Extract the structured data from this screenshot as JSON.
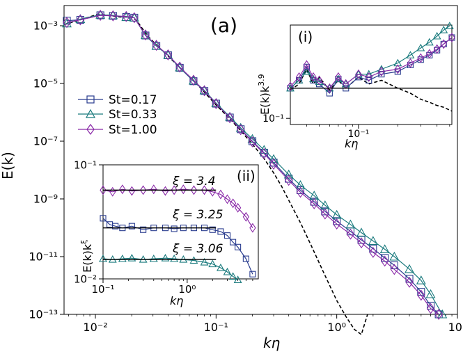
{
  "chart_data": [
    {
      "type": "line",
      "panel": "main",
      "label": "(a)",
      "xlabel": "kη",
      "ylabel": "E(k)",
      "xscale": "log",
      "yscale": "log",
      "xlim": [
        0.0055,
        10
      ],
      "ylim": [
        1e-13,
        0.005
      ],
      "xticks": [
        {
          "v": 0.01,
          "label": "10⁻²"
        },
        {
          "v": 0.1,
          "label": "10⁻¹"
        },
        {
          "v": 1,
          "label": "10⁰"
        },
        {
          "v": 10,
          "label": "10¹"
        }
      ],
      "yticks": [
        {
          "v": 0.001,
          "label": "10⁻³"
        },
        {
          "v": 1e-05,
          "label": "10⁻⁵"
        },
        {
          "v": 1e-07,
          "label": "10⁻⁷"
        },
        {
          "v": 1e-09,
          "label": "10⁻⁹"
        },
        {
          "v": 1e-11,
          "label": "10⁻¹¹"
        },
        {
          "v": 1e-13,
          "label": "10⁻¹³"
        }
      ],
      "legend": {
        "position": "center-left",
        "entries": [
          "St=0.17",
          "St=0.33",
          "St=1.00"
        ]
      },
      "series": [
        {
          "name": "fluid (dashed)",
          "style": "dashed",
          "color": "#000000",
          "x": [
            0.0055,
            0.0075,
            0.0105,
            0.013,
            0.016,
            0.02,
            0.022,
            0.027,
            0.033,
            0.04,
            0.05,
            0.065,
            0.08,
            0.1,
            0.13,
            0.16,
            0.2,
            0.25,
            0.3,
            0.35,
            0.4,
            0.5,
            0.6,
            0.8,
            1.0,
            1.2,
            1.4,
            1.6,
            1.8
          ],
          "y": [
            0.0011,
            0.0016,
            0.0025,
            0.0023,
            0.002,
            0.002,
            0.0015,
            0.00045,
            0.00019,
            9e-05,
            3.5e-05,
            1.3e-05,
            5e-06,
            1.8e-06,
            6e-07,
            2.3e-07,
            7.9e-08,
            2.5e-08,
            8e-09,
            2.7e-09,
            9e-10,
            1.5e-10,
            3e-11,
            2.2e-12,
            3e-13,
            8e-14,
            3e-14,
            2e-14,
            1e-13
          ]
        },
        {
          "name": "St=0.17",
          "marker": "square",
          "color": "#2a3d8f",
          "x": [
            0.0058,
            0.0075,
            0.011,
            0.014,
            0.018,
            0.021,
            0.026,
            0.032,
            0.04,
            0.05,
            0.065,
            0.08,
            0.1,
            0.13,
            0.16,
            0.2,
            0.25,
            0.3,
            0.4,
            0.5,
            0.65,
            0.8,
            1.0,
            1.3,
            1.6,
            2.0,
            2.5,
            3.0,
            4.0,
            5.0,
            6.0,
            7.0
          ],
          "y": [
            0.0015,
            0.0016,
            0.0023,
            0.0022,
            0.002,
            0.0019,
            0.00046,
            0.0002,
            9.5e-05,
            3.5e-05,
            1.2e-05,
            5.5e-06,
            2e-06,
            6.6e-07,
            2.6e-07,
            1e-07,
            4e-08,
            1.8e-08,
            5e-09,
            2e-09,
            8e-10,
            3.7e-10,
            1.7e-10,
            7.5e-11,
            3.8e-11,
            1.9e-11,
            9e-12,
            5e-12,
            1.7e-12,
            6e-13,
            2e-13,
            1e-13
          ]
        },
        {
          "name": "St=0.33",
          "marker": "triangle",
          "color": "#1b7b7e",
          "x": [
            0.0058,
            0.0075,
            0.011,
            0.014,
            0.018,
            0.021,
            0.026,
            0.032,
            0.04,
            0.05,
            0.065,
            0.08,
            0.1,
            0.13,
            0.16,
            0.2,
            0.25,
            0.3,
            0.4,
            0.5,
            0.65,
            0.8,
            1.0,
            1.3,
            1.6,
            2.0,
            2.5,
            3.0,
            4.0,
            5.0,
            6.0,
            7.5
          ],
          "y": [
            0.0012,
            0.0017,
            0.0024,
            0.0023,
            0.002,
            0.0019,
            0.00047,
            0.0002,
            9.7e-05,
            3.6e-05,
            1.25e-05,
            5.8e-06,
            2.1e-06,
            7e-07,
            2.9e-07,
            1.2e-07,
            5e-08,
            2.4e-08,
            7e-09,
            3e-09,
            1.3e-09,
            6e-10,
            2.8e-10,
            1.3e-10,
            6.8e-11,
            3.5e-11,
            1.8e-11,
            1e-11,
            3.7e-12,
            1.5e-12,
            5e-13,
            1e-13
          ]
        },
        {
          "name": "St=1.00",
          "marker": "diamond",
          "color": "#8a2aa8",
          "x": [
            0.0058,
            0.0075,
            0.011,
            0.014,
            0.018,
            0.021,
            0.026,
            0.032,
            0.04,
            0.05,
            0.065,
            0.08,
            0.1,
            0.13,
            0.16,
            0.2,
            0.25,
            0.3,
            0.4,
            0.5,
            0.65,
            0.8,
            1.0,
            1.3,
            1.6,
            2.0,
            2.5,
            3.0,
            4.0,
            5.0,
            6.0,
            7.0
          ],
          "y": [
            0.0013,
            0.0016,
            0.0023,
            0.0022,
            0.0021,
            0.0019,
            0.00048,
            0.00021,
            9.8e-05,
            3.7e-05,
            1.3e-05,
            5.6e-06,
            2e-06,
            6.5e-07,
            2.5e-07,
            9.5e-08,
            3.7e-08,
            1.6e-08,
            4.4e-09,
            1.7e-09,
            6.8e-10,
            3e-10,
            1.35e-10,
            6e-11,
            3e-11,
            1.4e-11,
            7e-12,
            3.6e-12,
            1.3e-12,
            4.6e-13,
            1.6e-13,
            1e-13
          ]
        }
      ]
    },
    {
      "type": "line",
      "panel": "inset-i",
      "label": "(i)",
      "xlabel": "kη",
      "ylabel": "E(k)k",
      "ylabel_exponent": "3.9",
      "xscale": "log",
      "yscale": "log",
      "xlim": [
        0.03,
        0.52
      ],
      "ylim": [
        0.08,
        3.0
      ],
      "xticks": [
        {
          "v": 0.1,
          "label": "10⁻¹"
        }
      ],
      "yticks": [
        {
          "v": 0.1,
          "label": "10⁻¹"
        }
      ],
      "reference_line": {
        "y": 0.3
      },
      "series": [
        {
          "name": "fluid",
          "color": "#000000",
          "style": "dashed",
          "x": [
            0.03,
            0.035,
            0.04,
            0.045,
            0.05,
            0.06,
            0.07,
            0.08,
            0.1,
            0.12,
            0.15,
            0.2,
            0.25,
            0.3,
            0.35,
            0.4,
            0.45,
            0.52
          ],
          "y": [
            0.28,
            0.35,
            0.6,
            0.35,
            0.45,
            0.28,
            0.4,
            0.3,
            0.45,
            0.35,
            0.4,
            0.3,
            0.25,
            0.2,
            0.18,
            0.16,
            0.15,
            0.13
          ]
        },
        {
          "name": "St=0.17",
          "marker": "square",
          "color": "#2a3d8f",
          "x": [
            0.03,
            0.035,
            0.04,
            0.045,
            0.05,
            0.06,
            0.07,
            0.08,
            0.1,
            0.12,
            0.15,
            0.2,
            0.25,
            0.3,
            0.35,
            0.4,
            0.45,
            0.52
          ],
          "y": [
            0.3,
            0.4,
            0.65,
            0.4,
            0.35,
            0.25,
            0.42,
            0.3,
            0.45,
            0.4,
            0.5,
            0.55,
            0.7,
            0.85,
            1.0,
            1.2,
            1.5,
            1.9
          ]
        },
        {
          "name": "St=0.33",
          "marker": "triangle",
          "color": "#1b7b7e",
          "x": [
            0.03,
            0.035,
            0.04,
            0.045,
            0.05,
            0.06,
            0.07,
            0.08,
            0.1,
            0.12,
            0.15,
            0.2,
            0.25,
            0.3,
            0.35,
            0.4,
            0.45,
            0.5
          ],
          "y": [
            0.3,
            0.4,
            0.55,
            0.42,
            0.38,
            0.3,
            0.42,
            0.35,
            0.5,
            0.5,
            0.6,
            0.75,
            1.0,
            1.3,
            1.6,
            2.0,
            2.5,
            2.9
          ]
        },
        {
          "name": "St=1.00",
          "marker": "diamond",
          "color": "#8a2aa8",
          "x": [
            0.03,
            0.035,
            0.04,
            0.045,
            0.05,
            0.06,
            0.07,
            0.08,
            0.1,
            0.12,
            0.15,
            0.2,
            0.25,
            0.3,
            0.35,
            0.4,
            0.45,
            0.52
          ],
          "y": [
            0.32,
            0.45,
            0.7,
            0.45,
            0.4,
            0.3,
            0.45,
            0.35,
            0.5,
            0.45,
            0.55,
            0.6,
            0.75,
            0.9,
            1.05,
            1.25,
            1.5,
            1.9
          ]
        }
      ]
    },
    {
      "type": "line",
      "panel": "inset-ii",
      "label": "(ii)",
      "xlabel": "kη",
      "ylabel": "E(k)k",
      "ylabel_exponent": "ξ",
      "xscale": "log",
      "yscale": "log",
      "xlim": [
        0.1,
        7
      ],
      "ylim": [
        0.01,
        0.1
      ],
      "xticks": [
        {
          "v": 0.1,
          "label": "10⁻¹"
        },
        {
          "v": 1,
          "label": "10⁰"
        }
      ],
      "yticks": [
        {
          "v": 0.1,
          "label": "10⁻¹"
        },
        {
          "v": 0.01,
          "label": "10⁻²"
        }
      ],
      "annotations": [
        {
          "text": "ξ = 3.4",
          "y": 0.06
        },
        {
          "text": "ξ = 3.25",
          "y": 0.028
        },
        {
          "text": "ξ = 3.06",
          "y": 0.0148
        }
      ],
      "reference_lines": [
        {
          "y": 0.06,
          "x": [
            0.1,
            2.2
          ]
        },
        {
          "y": 0.028,
          "x": [
            0.1,
            2.2
          ]
        },
        {
          "y": 0.0148,
          "x": [
            0.1,
            2.2
          ]
        }
      ],
      "series": [
        {
          "name": "St=1.00 (ξ=3.4)",
          "marker": "diamond",
          "color": "#8a2aa8",
          "x": [
            0.1,
            0.13,
            0.17,
            0.22,
            0.3,
            0.4,
            0.55,
            0.7,
            0.9,
            1.2,
            1.6,
            2.0,
            2.5,
            3.0,
            3.5,
            4.0,
            5.0,
            6.0
          ],
          "y": [
            0.06,
            0.058,
            0.061,
            0.059,
            0.06,
            0.061,
            0.059,
            0.06,
            0.061,
            0.06,
            0.06,
            0.058,
            0.055,
            0.05,
            0.046,
            0.042,
            0.035,
            0.028
          ]
        },
        {
          "name": "St=0.17 (ξ=3.25)",
          "marker": "square",
          "color": "#2a3d8f",
          "x": [
            0.1,
            0.12,
            0.14,
            0.17,
            0.22,
            0.3,
            0.4,
            0.55,
            0.7,
            0.9,
            1.2,
            1.6,
            2.0,
            2.5,
            3.0,
            3.5,
            4.0,
            5.0,
            6.0
          ],
          "y": [
            0.034,
            0.03,
            0.029,
            0.028,
            0.029,
            0.027,
            0.028,
            0.028,
            0.0275,
            0.028,
            0.028,
            0.028,
            0.027,
            0.026,
            0.024,
            0.021,
            0.019,
            0.015,
            0.011
          ]
        },
        {
          "name": "St=0.33 (ξ=3.06)",
          "marker": "triangle",
          "color": "#1b7b7e",
          "x": [
            0.1,
            0.13,
            0.17,
            0.22,
            0.3,
            0.4,
            0.55,
            0.7,
            0.9,
            1.2,
            1.6,
            2.0,
            2.5,
            3.0,
            3.5,
            4.0
          ],
          "y": [
            0.015,
            0.0148,
            0.015,
            0.0152,
            0.0148,
            0.015,
            0.0152,
            0.015,
            0.0148,
            0.0145,
            0.014,
            0.0135,
            0.0125,
            0.0115,
            0.0105,
            0.0098
          ]
        }
      ]
    }
  ]
}
